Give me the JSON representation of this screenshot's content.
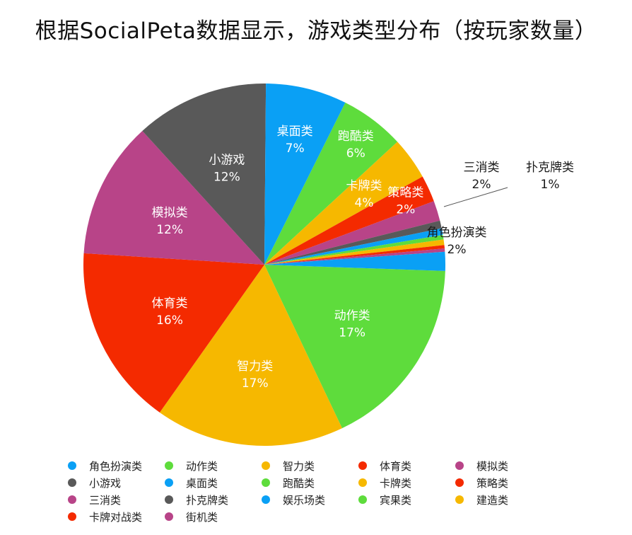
{
  "page": {
    "title": "根据SocialPeta数据显示，游戏类型分布（按玩家数量）"
  },
  "chart_data": {
    "type": "pie",
    "title": "根据SocialPeta数据显示，游戏类型分布（按玩家数量）",
    "start_angle_deg": 0,
    "direction": "clockwise",
    "legend_placement": "bottom",
    "slices": [
      {
        "label": "动作类",
        "value": 17.5,
        "pct_label": "17%",
        "color": "#5edc3c",
        "inner_label": true
      },
      {
        "label": "智力类",
        "value": 17.0,
        "pct_label": "17%",
        "color": "#f6b800",
        "inner_label": true
      },
      {
        "label": "体育类",
        "value": 16.3,
        "pct_label": "16%",
        "color": "#f42a00",
        "inner_label": true
      },
      {
        "label": "模拟类",
        "value": 12.3,
        "pct_label": "12%",
        "color": "#b84488",
        "inner_label": true
      },
      {
        "label": "小游戏",
        "value": 12.0,
        "pct_label": "12%",
        "color": "#595959",
        "inner_label": true
      },
      {
        "label": "桌面类",
        "value": 7.3,
        "pct_label": "7%",
        "color": "#0aa0f5",
        "inner_label": true
      },
      {
        "label": "跑酷类",
        "value": 5.8,
        "pct_label": "6%",
        "color": "#5edc3c",
        "inner_label": true
      },
      {
        "label": "卡牌类",
        "value": 3.8,
        "pct_label": "4%",
        "color": "#f6b800",
        "inner_label": true
      },
      {
        "label": "策略类",
        "value": 2.4,
        "pct_label": "2%",
        "color": "#f42a00",
        "inner_label": true
      },
      {
        "label": "三消类",
        "value": 1.8,
        "pct_label": "2%",
        "color": "#b84488",
        "inner_label": false
      },
      {
        "label": "扑克牌类",
        "value": 0.7,
        "pct_label": "1%",
        "color": "#595959",
        "inner_label": false
      },
      {
        "label": "娱乐场类",
        "value": 0.6,
        "pct_label": "",
        "color": "#0aa0f5",
        "inner_label": false
      },
      {
        "label": "宾果类",
        "value": 0.4,
        "pct_label": "",
        "color": "#5edc3c",
        "inner_label": false
      },
      {
        "label": "建造类",
        "value": 0.5,
        "pct_label": "",
        "color": "#f6b800",
        "inner_label": false
      },
      {
        "label": "卡牌对战类",
        "value": 0.3,
        "pct_label": "",
        "color": "#f42a00",
        "inner_label": false
      },
      {
        "label": "街机类",
        "value": 0.3,
        "pct_label": "",
        "color": "#b84488",
        "inner_label": false
      },
      {
        "label": "角色扮演类",
        "value": 1.7,
        "pct_label": "2%",
        "color": "#0aa0f5",
        "inner_label": false
      }
    ],
    "callouts": [
      {
        "label": "三消类",
        "pct_label": "2%"
      },
      {
        "label": "扑克牌类",
        "pct_label": "1%"
      },
      {
        "label": "角色扮演类",
        "pct_label": "2%"
      }
    ],
    "legend": [
      [
        "角色扮演类",
        "动作类",
        "智力类",
        "体育类",
        "模拟类"
      ],
      [
        "小游戏",
        "桌面类",
        "跑酷类",
        "卡牌类",
        "策略类"
      ],
      [
        "三消类",
        "扑克牌类",
        "娱乐场类",
        "宾果类",
        "建造类"
      ],
      [
        "卡牌对战类",
        "街机类"
      ]
    ],
    "legend_colors": {
      "角色扮演类": "#0aa0f5",
      "动作类": "#5edc3c",
      "智力类": "#f6b800",
      "体育类": "#f42a00",
      "模拟类": "#b84488",
      "小游戏": "#595959",
      "桌面类": "#0aa0f5",
      "跑酷类": "#5edc3c",
      "卡牌类": "#f6b800",
      "策略类": "#f42a00",
      "三消类": "#b84488",
      "扑克牌类": "#595959",
      "娱乐场类": "#0aa0f5",
      "宾果类": "#5edc3c",
      "建造类": "#f6b800",
      "卡牌对战类": "#f42a00",
      "街机类": "#b84488"
    }
  }
}
